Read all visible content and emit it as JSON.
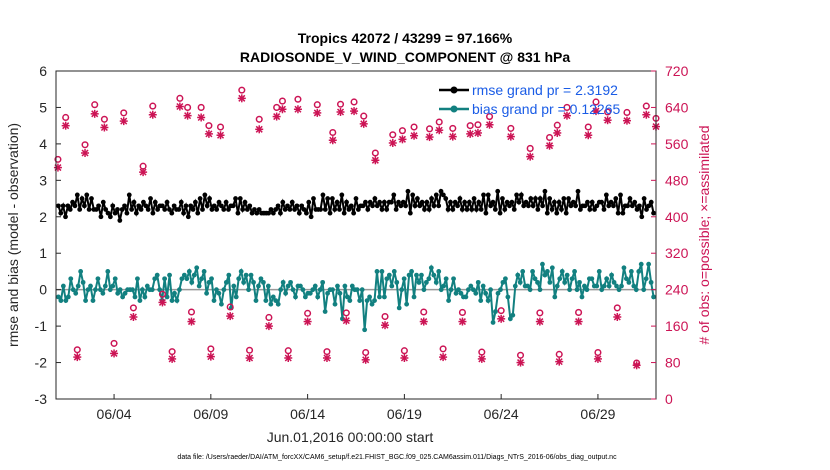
{
  "chart_data": {
    "type": "line",
    "title": "Tropics 42072 / 43299 = 97.166%",
    "subtitle": "RADIOSONDE_V_WIND_COMPONENT @ 831 hPa",
    "xlabel": "Jun.01,2016 00:00:00 start",
    "ylabel": "rmse and bias (model - observation)",
    "ylabel_right": "# of obs: o=possible; ×=assimilated",
    "footer": "data file: /Users/raeder/DAI/ATM_forcXX/CAM6_setup/f.e21.FHIST_BGC.f09_025.CAM6assim.011/Diags_NTrS_2016-06/obs_diag_output.nc",
    "xlim": [
      1,
      32
    ],
    "ylim": [
      -3,
      6
    ],
    "ylim_right": [
      0,
      720
    ],
    "x_tick_values": [
      4,
      9,
      14,
      19,
      24,
      29
    ],
    "x_tick_labels": [
      "06/04",
      "06/09",
      "06/14",
      "06/19",
      "06/24",
      "06/29"
    ],
    "y_ticks": [
      "-3",
      "-2",
      "-1",
      "0",
      "1",
      "2",
      "3",
      "4",
      "5",
      "6"
    ],
    "y_ticks_right": [
      "0",
      "80",
      "160",
      "240",
      "320",
      "400",
      "480",
      "560",
      "640",
      "720"
    ],
    "legend": [
      "rmse grand pr = 2.3192",
      "bias grand pr = 0.12265"
    ],
    "series": [
      {
        "name": "rmse",
        "color": "#000000",
        "axis": "left",
        "values": [
          2.3,
          2.1,
          2.3,
          2.0,
          2.3,
          2.2,
          2.4,
          2.3,
          2.6,
          2.2,
          2.5,
          2.3,
          2.6,
          2.2,
          2.5,
          2.2,
          2.2,
          2.3,
          2.0,
          2.4,
          2.2,
          2.1,
          2.0,
          2.3,
          2.1,
          2.2,
          1.9,
          2.2,
          2.3,
          2.1,
          2.6,
          2.2,
          2.4,
          2.1,
          2.3,
          2.2,
          2.4,
          2.3,
          2.2,
          2.5,
          2.1,
          2.4,
          2.2,
          2.3,
          2.3,
          2.2,
          2.4,
          2.2,
          2.1,
          2.3,
          2.2,
          2.2,
          2.4,
          2.1,
          2.3,
          2.0,
          2.3,
          2.2,
          2.4,
          2.1,
          2.5,
          2.2,
          2.6,
          2.3,
          2.5,
          2.2,
          2.3,
          2.2,
          2.4,
          2.3,
          2.2,
          2.4,
          2.2,
          2.3,
          2.3,
          2.5,
          2.1,
          2.5,
          2.2,
          2.4,
          2.2,
          2.3,
          2.1,
          2.2,
          2.1,
          2.2,
          2.1,
          2.1,
          2.1,
          2.1,
          2.2,
          2.1,
          2.2,
          2.3,
          2.1,
          2.4,
          2.2,
          2.3,
          2.2,
          2.4,
          2.2,
          2.3,
          2.1,
          2.3,
          2.2,
          2.1,
          2.4,
          2.0,
          2.5,
          2.2,
          2.2,
          2.2,
          2.6,
          2.2,
          2.5,
          2.1,
          2.5,
          2.2,
          2.4,
          2.2,
          2.6,
          2.1,
          2.4,
          2.2,
          2.3,
          2.1,
          2.5,
          2.2,
          2.3,
          2.3,
          2.4,
          2.2,
          2.4,
          2.3,
          2.5,
          2.3,
          2.4,
          2.2,
          2.4,
          2.2,
          2.4,
          2.4,
          2.6,
          2.2,
          2.4,
          2.3,
          2.4,
          2.3,
          2.7,
          2.1,
          2.6,
          2.3,
          2.5,
          2.3,
          2.4,
          2.2,
          2.4,
          2.2,
          2.5,
          2.3,
          2.6,
          2.3,
          2.7,
          2.6,
          2.5,
          2.2,
          2.4,
          2.2,
          2.4,
          2.3,
          2.5,
          2.2,
          2.4,
          2.2,
          2.4,
          2.2,
          2.5,
          2.2,
          2.4,
          2.2,
          2.6,
          2.1,
          2.6,
          2.3,
          2.4,
          2.2,
          2.7,
          2.1,
          2.5,
          2.2,
          2.4,
          2.3,
          2.4,
          2.2,
          2.6,
          2.4,
          2.6,
          2.3,
          2.4,
          2.3,
          2.5,
          2.3,
          2.5,
          2.2,
          2.5,
          2.3,
          2.7,
          2.1,
          2.5,
          2.2,
          2.4,
          2.1,
          2.4,
          2.2,
          2.5,
          2.1,
          2.5,
          2.3,
          2.4,
          2.3,
          2.7,
          2.2,
          2.3,
          2.3,
          2.4,
          2.2,
          2.4,
          2.2,
          2.3,
          2.4,
          2.4,
          2.2,
          2.6,
          2.3,
          2.4,
          2.3,
          2.5,
          2.1,
          2.6,
          2.1,
          2.3,
          2.3,
          2.5,
          2.3,
          2.4,
          2.2,
          2.3,
          2.0,
          2.5,
          2.2,
          2.3,
          2.4,
          2.1
        ]
      },
      {
        "name": "bias",
        "color": "#128080",
        "axis": "left",
        "values": [
          -0.2,
          -0.3,
          0.1,
          -0.3,
          -0.2,
          0.3,
          0.0,
          -0.1,
          0.1,
          0.5,
          0.2,
          -0.3,
          0.0,
          0.1,
          -0.3,
          0.0,
          0.3,
          0.0,
          -0.1,
          0.1,
          0.5,
          0.0,
          0.1,
          0.3,
          -0.1,
          0.0,
          -0.2,
          -0.1,
          0.0,
          0.0,
          0.0,
          -0.2,
          0.3,
          -0.3,
          0.0,
          -0.2,
          0.1,
          0.0,
          0.0,
          0.3,
          0.4,
          0.0,
          -0.3,
          0.3,
          -0.2,
          0.4,
          -0.3,
          -0.1,
          -0.3,
          0.0,
          0.3,
          0.4,
          0.3,
          0.5,
          0.2,
          0.4,
          0.6,
          0.1,
          0.3,
          0.5,
          -0.1,
          0.2,
          0.3,
          -0.3,
          0.0,
          -0.1,
          -0.4,
          0.0,
          0.2,
          0.4,
          -0.5,
          0.1,
          -0.2,
          0.3,
          0.5,
          0.2,
          0.4,
          0.0,
          0.4,
          0.2,
          -0.3,
          0.1,
          0.3,
          0.2,
          -0.3,
          0.1,
          -0.4,
          -0.2,
          -0.3,
          -0.4,
          0.0,
          0.2,
          -0.1,
          0.1,
          0.2,
          0.0,
          -0.2,
          0.1,
          0.1,
          0.0,
          -0.2,
          -0.1,
          -0.1,
          0.0,
          0.1,
          -0.2,
          0.0,
          0.2,
          -0.6,
          -0.1,
          0.0,
          0.0,
          -0.4,
          0.1,
          -0.1,
          -0.8,
          0.1,
          -0.2,
          -0.3,
          0.1,
          0.0,
          0.0,
          -0.3,
          0.0,
          -1.1,
          -0.3,
          -0.2,
          -0.4,
          -0.3,
          0.5,
          -0.2,
          0.5,
          -0.2,
          0.3,
          0.4,
          0.1,
          0.5,
          0.2,
          -0.5,
          0.0,
          0.3,
          -0.4,
          0.4,
          0.5,
          -0.2,
          0.4,
          0.2,
          0.4,
          0.0,
          0.2,
          0.3,
          0.6,
          0.4,
          0.2,
          0.5,
          0.0,
          0.1,
          0.3,
          -0.3,
          0.0,
          0.3,
          -0.1,
          0.0,
          -0.1,
          -0.2,
          -0.2,
          0.0,
          0.1,
          0.0,
          -0.1,
          0.2,
          -0.3,
          0.1,
          -0.1,
          -0.3,
          0.0,
          -0.9,
          -0.6,
          -0.1,
          0.0,
          0.2,
          0.3,
          -0.2,
          -0.8,
          -0.7,
          0.1,
          0.4,
          0.2,
          0.5,
          0.1,
          0.1,
          0.0,
          0.5,
          0.3,
          0.2,
          0.0,
          0.7,
          0.4,
          0.5,
          0.2,
          0.6,
          -0.2,
          0.1,
          0.3,
          0.5,
          0.2,
          0.4,
          0.0,
          0.3,
          0.5,
          0.0,
          0.2,
          -0.2,
          0.1,
          0.0,
          0.3,
          0.3,
          0.1,
          0.1,
          0.5,
          0.0,
          0.1,
          0.3,
          0.1,
          0.4,
          0.2,
          0.1,
          0.0,
          0.1,
          0.6,
          0.3,
          0.2,
          0.5,
          0.1,
          0.0,
          0.5,
          0.7,
          0.0,
          0.3,
          0.7,
          0.2,
          -0.2
        ]
      },
      {
        "name": "possible",
        "color": "#cc1455",
        "axis": "right",
        "marker": "o",
        "points": [
          [
            1.1,
            526
          ],
          [
            1.5,
            618
          ],
          [
            2.1,
            108
          ],
          [
            2.5,
            558
          ],
          [
            3.0,
            646
          ],
          [
            3.5,
            614
          ],
          [
            4.0,
            122
          ],
          [
            4.5,
            628
          ],
          [
            5.0,
            200
          ],
          [
            5.5,
            511
          ],
          [
            6.0,
            643
          ],
          [
            6.5,
            230
          ],
          [
            7.0,
            104
          ],
          [
            7.4,
            660
          ],
          [
            7.8,
            640
          ],
          [
            8.0,
            191
          ],
          [
            8.5,
            640
          ],
          [
            8.9,
            600
          ],
          [
            9.0,
            110
          ],
          [
            9.5,
            597
          ],
          [
            10.0,
            202
          ],
          [
            10.6,
            678
          ],
          [
            11.0,
            107
          ],
          [
            11.5,
            614
          ],
          [
            12.0,
            179
          ],
          [
            12.4,
            640
          ],
          [
            12.7,
            654
          ],
          [
            13.0,
            106
          ],
          [
            13.5,
            658
          ],
          [
            14.0,
            188
          ],
          [
            14.5,
            646
          ],
          [
            15.0,
            104
          ],
          [
            15.3,
            585
          ],
          [
            15.7,
            647
          ],
          [
            16.0,
            189
          ],
          [
            16.4,
            652
          ],
          [
            16.9,
            621
          ],
          [
            17.0,
            102
          ],
          [
            17.5,
            540
          ],
          [
            18.0,
            181
          ],
          [
            18.4,
            580
          ],
          [
            18.9,
            589
          ],
          [
            19.0,
            106
          ],
          [
            19.5,
            597
          ],
          [
            20.0,
            191
          ],
          [
            20.3,
            593
          ],
          [
            20.8,
            608
          ],
          [
            21.0,
            110
          ],
          [
            21.5,
            594
          ],
          [
            22.0,
            190
          ],
          [
            22.4,
            600
          ],
          [
            22.8,
            602
          ],
          [
            23.0,
            103
          ],
          [
            23.4,
            620
          ],
          [
            24.0,
            194
          ],
          [
            24.5,
            594
          ],
          [
            25.0,
            96
          ],
          [
            25.5,
            550
          ],
          [
            26.0,
            189
          ],
          [
            26.5,
            574
          ],
          [
            26.9,
            601
          ],
          [
            27.0,
            98
          ],
          [
            27.4,
            640
          ],
          [
            28.0,
            190
          ],
          [
            28.5,
            597
          ],
          [
            28.9,
            652
          ],
          [
            29.0,
            102
          ],
          [
            29.5,
            630
          ],
          [
            30.0,
            200
          ],
          [
            30.5,
            629
          ],
          [
            31.0,
            79
          ],
          [
            31.5,
            643
          ],
          [
            32.0,
            616
          ]
        ]
      },
      {
        "name": "assimilated",
        "color": "#cc1455",
        "axis": "right",
        "marker": "*",
        "points": [
          [
            1.1,
            508
          ],
          [
            1.5,
            600
          ],
          [
            2.1,
            92
          ],
          [
            2.5,
            540
          ],
          [
            3.0,
            626
          ],
          [
            3.5,
            596
          ],
          [
            4.0,
            100
          ],
          [
            4.5,
            610
          ],
          [
            5.0,
            180
          ],
          [
            5.5,
            498
          ],
          [
            6.0,
            624
          ],
          [
            6.5,
            212
          ],
          [
            7.0,
            88
          ],
          [
            7.4,
            642
          ],
          [
            7.8,
            622
          ],
          [
            8.0,
            170
          ],
          [
            8.5,
            618
          ],
          [
            8.9,
            582
          ],
          [
            9.0,
            93
          ],
          [
            9.5,
            579
          ],
          [
            10.0,
            182
          ],
          [
            10.6,
            660
          ],
          [
            11.0,
            90
          ],
          [
            11.5,
            592
          ],
          [
            12.0,
            160
          ],
          [
            12.4,
            620
          ],
          [
            12.7,
            636
          ],
          [
            13.0,
            90
          ],
          [
            13.5,
            636
          ],
          [
            14.0,
            170
          ],
          [
            14.5,
            628
          ],
          [
            15.0,
            90
          ],
          [
            15.3,
            568
          ],
          [
            15.7,
            630
          ],
          [
            16.0,
            172
          ],
          [
            16.4,
            632
          ],
          [
            16.9,
            604
          ],
          [
            17.0,
            86
          ],
          [
            17.5,
            524
          ],
          [
            18.0,
            162
          ],
          [
            18.4,
            562
          ],
          [
            18.9,
            570
          ],
          [
            19.0,
            90
          ],
          [
            19.5,
            578
          ],
          [
            20.0,
            170
          ],
          [
            20.3,
            575
          ],
          [
            20.8,
            590
          ],
          [
            21.0,
            92
          ],
          [
            21.5,
            576
          ],
          [
            22.0,
            170
          ],
          [
            22.4,
            582
          ],
          [
            22.8,
            584
          ],
          [
            23.0,
            88
          ],
          [
            23.4,
            602
          ],
          [
            24.0,
            176
          ],
          [
            24.5,
            576
          ],
          [
            25.0,
            80
          ],
          [
            25.5,
            532
          ],
          [
            26.0,
            170
          ],
          [
            26.5,
            556
          ],
          [
            26.9,
            584
          ],
          [
            27.0,
            82
          ],
          [
            27.4,
            622
          ],
          [
            28.0,
            170
          ],
          [
            28.5,
            579
          ],
          [
            28.9,
            632
          ],
          [
            29.0,
            88
          ],
          [
            29.5,
            612
          ],
          [
            30.0,
            180
          ],
          [
            30.5,
            611
          ],
          [
            31.0,
            74
          ],
          [
            31.5,
            624
          ],
          [
            32.0,
            598
          ]
        ]
      }
    ]
  },
  "colors": {
    "rmse": "#000000",
    "bias": "#128080",
    "obs": "#cc1455",
    "zero_line": "#999999",
    "legend_text": "#1a5ce6"
  }
}
